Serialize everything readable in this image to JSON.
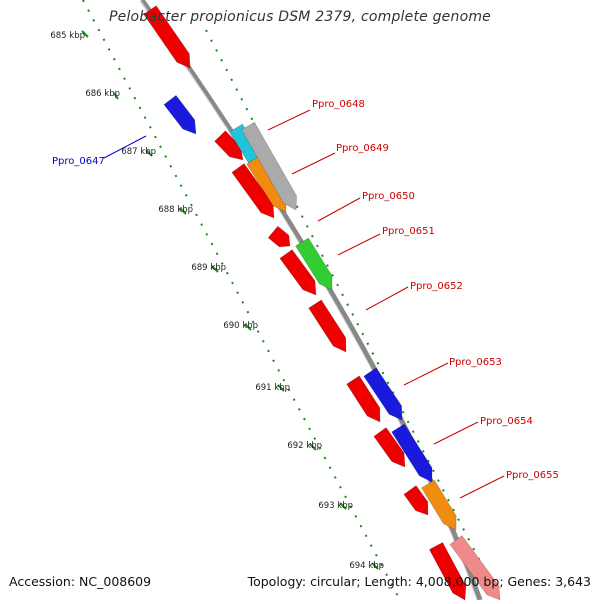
{
  "title": "Pelobacter propionicus DSM 2379, complete genome",
  "footer": {
    "accession_label": "Accession:",
    "accession": "NC_008609",
    "topology_label": "Topology:",
    "topology": "circular",
    "length_label": "Length:",
    "length": "4,008,000 bp",
    "genes_label": "Genes:",
    "genes": "3,643"
  },
  "ruler": {
    "color": "#1a8a1a",
    "ticks": [
      "685 kbp",
      "686 kbp",
      "687 kbp",
      "688 kbp",
      "689 kbp",
      "690 kbp",
      "691 kbp",
      "692 kbp",
      "693 kbp",
      "694 kbp"
    ]
  },
  "colors": {
    "backbone": "#888888",
    "red": "#ee0000",
    "pink": "#f08a8a",
    "blue": "#1a1add",
    "cyan": "#22c4dd",
    "orange": "#f08c10",
    "green": "#33cc33",
    "gray": "#aaaaaa",
    "label_red": "#cc0000",
    "label_blue": "#0000cc"
  },
  "gene_labels": [
    {
      "name": "Ppro_0647",
      "color": "#0000cc"
    },
    {
      "name": "Ppro_0648",
      "color": "#cc0000"
    },
    {
      "name": "Ppro_0649",
      "color": "#cc0000"
    },
    {
      "name": "Ppro_0650",
      "color": "#cc0000"
    },
    {
      "name": "Ppro_0651",
      "color": "#cc0000"
    },
    {
      "name": "Ppro_0652",
      "color": "#cc0000"
    },
    {
      "name": "Ppro_0653",
      "color": "#cc0000"
    },
    {
      "name": "Ppro_0654",
      "color": "#cc0000"
    },
    {
      "name": "Ppro_0655",
      "color": "#cc0000"
    }
  ]
}
